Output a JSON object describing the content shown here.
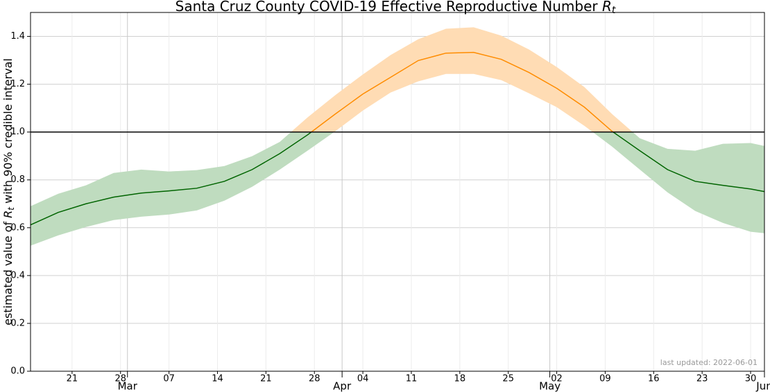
{
  "chart_data": {
    "type": "band-line",
    "title": "Santa Cruz County COVID-19 Effective Reproductive Number",
    "symbol": "R",
    "subscript": "t",
    "ylabel_before": "estimated value of",
    "ylabel_after": "with 90% credible interval",
    "annotation": "last updated: 2022-06-01",
    "x": [
      "02-15",
      "02-19",
      "02-23",
      "02-27",
      "03-03",
      "03-07",
      "03-11",
      "03-15",
      "03-19",
      "03-23",
      "03-27",
      "03-31",
      "04-04",
      "04-08",
      "04-12",
      "04-16",
      "04-20",
      "04-24",
      "04-28",
      "05-02",
      "05-06",
      "05-10",
      "05-14",
      "05-18",
      "05-22",
      "05-26",
      "05-30",
      "06-01"
    ],
    "values": [
      0.612,
      0.664,
      0.7,
      0.728,
      0.745,
      0.754,
      0.765,
      0.794,
      0.843,
      0.91,
      0.988,
      1.075,
      1.159,
      1.229,
      1.299,
      1.33,
      1.333,
      1.304,
      1.249,
      1.183,
      1.104,
      1.003,
      0.922,
      0.843,
      0.794,
      0.777,
      0.762,
      0.751
    ],
    "lower": [
      0.525,
      0.568,
      0.603,
      0.632,
      0.646,
      0.655,
      0.672,
      0.713,
      0.771,
      0.843,
      0.922,
      1.003,
      1.09,
      1.165,
      1.212,
      1.243,
      1.243,
      1.217,
      1.162,
      1.104,
      1.026,
      0.939,
      0.843,
      0.748,
      0.67,
      0.62,
      0.583,
      0.577
    ],
    "upper": [
      0.69,
      0.742,
      0.777,
      0.829,
      0.843,
      0.835,
      0.841,
      0.858,
      0.899,
      0.959,
      1.061,
      1.154,
      1.241,
      1.322,
      1.388,
      1.432,
      1.438,
      1.403,
      1.345,
      1.272,
      1.188,
      1.075,
      0.974,
      0.93,
      0.922,
      0.951,
      0.954,
      0.942
    ],
    "threshold": 1,
    "colors": {
      "above_line": "#ff8c00",
      "above_band": "#ffdcb4",
      "below_line": "#006400",
      "below_band": "#bfdcbf"
    },
    "xlim": [
      "02-15",
      "06-01"
    ],
    "ylim": [
      0,
      1.5
    ],
    "yticks": [
      {
        "value": 0,
        "label": "0.0"
      },
      0.2,
      0.4,
      0.6,
      0.8,
      {
        "value": 1,
        "label": "1.0"
      },
      1.2,
      1.4
    ],
    "xticks": [
      {
        "value": "02-21",
        "label": "21"
      },
      {
        "value": "02-28",
        "label": "28"
      },
      {
        "value": "03-07",
        "label": "07"
      },
      {
        "value": "03-14",
        "label": "14"
      },
      {
        "value": "03-21",
        "label": "21"
      },
      {
        "value": "03-28",
        "label": "28"
      },
      {
        "value": "04-04",
        "label": "04"
      },
      {
        "value": "04-11",
        "label": "11"
      },
      {
        "value": "04-18",
        "label": "18"
      },
      {
        "value": "04-25",
        "label": "25"
      },
      {
        "value": "05-02",
        "label": "02"
      },
      {
        "value": "05-09",
        "label": "09"
      },
      {
        "value": "05-16",
        "label": "16"
      },
      {
        "value": "05-23",
        "label": "23"
      },
      {
        "value": "05-30",
        "label": "30"
      }
    ],
    "xticks_major": [
      {
        "value": "03-01",
        "label": "Mar"
      },
      {
        "value": "04-01",
        "label": "Apr"
      },
      {
        "value": "05-01",
        "label": "May"
      },
      {
        "value": "06-01",
        "label": "Jun"
      }
    ],
    "grid": true
  }
}
